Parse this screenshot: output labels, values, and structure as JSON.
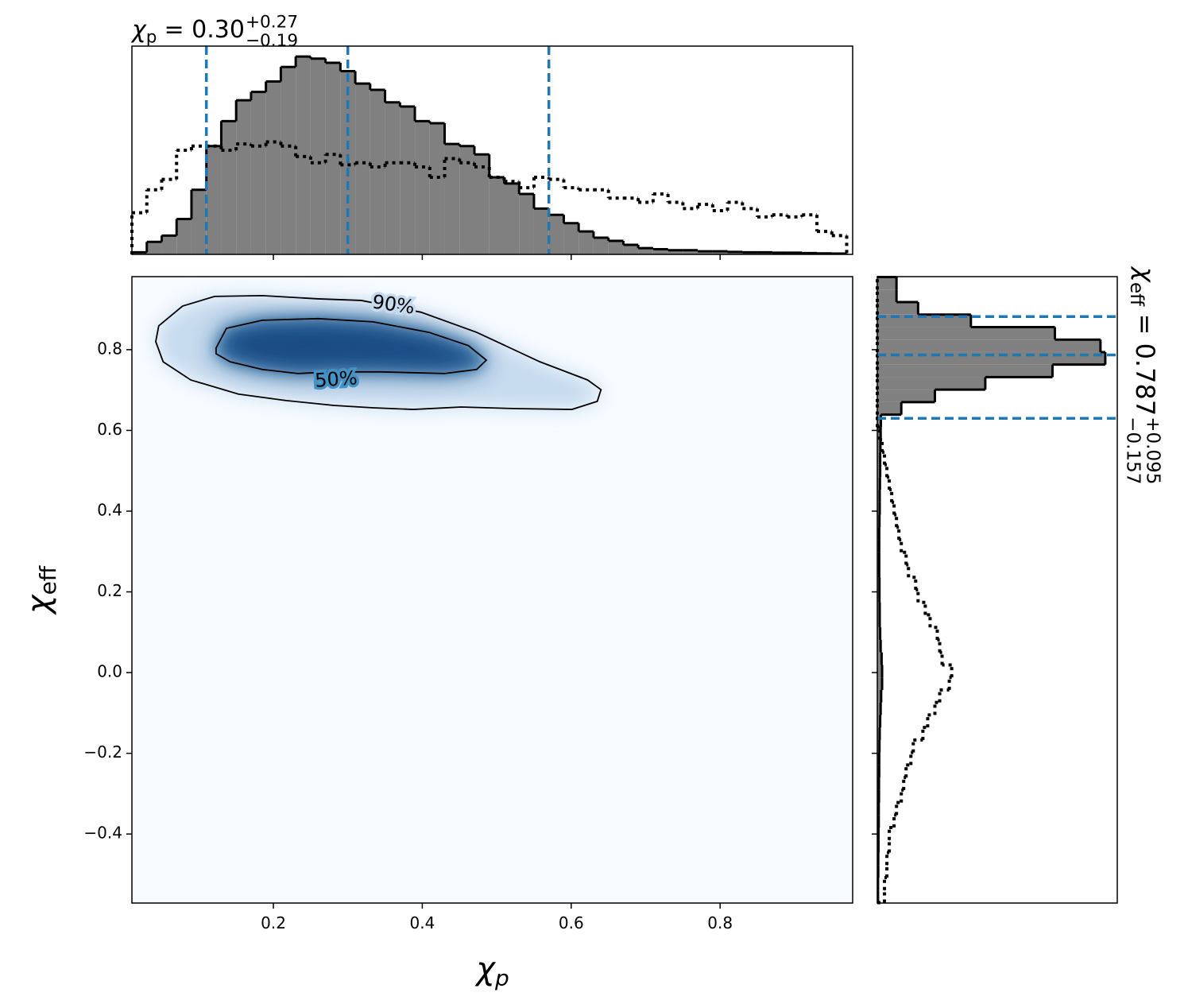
{
  "chart_data": [
    {
      "type": "histogram",
      "orientation": "vertical",
      "title": {
        "symbol": "χ",
        "symbol_sub": "p",
        "text": "= 0.30",
        "upper": "+0.27",
        "lower": "−0.19"
      },
      "bins": [
        0.01,
        0.03,
        0.05,
        0.07,
        0.09,
        0.11,
        0.13,
        0.15,
        0.17,
        0.19,
        0.21,
        0.23,
        0.25,
        0.27,
        0.29,
        0.31,
        0.33,
        0.35,
        0.37,
        0.39,
        0.41,
        0.43,
        0.45,
        0.47,
        0.49,
        0.51,
        0.53,
        0.55,
        0.57,
        0.59,
        0.61,
        0.63,
        0.65,
        0.67,
        0.69,
        0.71,
        0.73,
        0.75,
        0.77,
        0.79,
        0.81,
        0.83,
        0.85,
        0.87,
        0.89,
        0.91,
        0.93,
        0.95,
        0.97
      ],
      "series": [
        {
          "color": "#808080",
          "edgecolor": "#000000",
          "style": "filled",
          "values": [
            0.01,
            0.06,
            0.09,
            0.17,
            0.31,
            0.52,
            0.64,
            0.74,
            0.78,
            0.83,
            0.9,
            0.95,
            0.94,
            0.92,
            0.88,
            0.82,
            0.79,
            0.73,
            0.71,
            0.64,
            0.63,
            0.53,
            0.52,
            0.48,
            0.37,
            0.34,
            0.29,
            0.22,
            0.19,
            0.15,
            0.11,
            0.08,
            0.065,
            0.046,
            0.03,
            0.025,
            0.02,
            0.02,
            0.015,
            0.015,
            0.012,
            0.01,
            0.01,
            0.008,
            0.008,
            0.006,
            0.005,
            0.004
          ]
        },
        {
          "color": "#000000",
          "style": "dotted",
          "values": [
            0.2,
            0.31,
            0.36,
            0.5,
            0.52,
            0.52,
            0.5,
            0.53,
            0.52,
            0.54,
            0.52,
            0.47,
            0.44,
            0.48,
            0.43,
            0.44,
            0.42,
            0.44,
            0.44,
            0.42,
            0.37,
            0.46,
            0.44,
            0.42,
            0.37,
            0.35,
            0.32,
            0.37,
            0.36,
            0.32,
            0.31,
            0.31,
            0.27,
            0.27,
            0.25,
            0.29,
            0.25,
            0.22,
            0.24,
            0.21,
            0.25,
            0.22,
            0.18,
            0.19,
            0.18,
            0.19,
            0.11,
            0.09
          ]
        }
      ],
      "quantiles": [
        0.11,
        0.3,
        0.57
      ],
      "quantile_color": "#1f77b4",
      "xlim": [
        0.01,
        0.978
      ],
      "ylim": [
        0,
        1
      ],
      "xticks": [
        0.2,
        0.4,
        0.6,
        0.8
      ]
    },
    {
      "type": "contour",
      "xlabel": {
        "symbol": "χ",
        "sub": "p"
      },
      "ylabel": {
        "symbol": "χ",
        "sub": "eff"
      },
      "xlim": [
        0.01,
        0.978
      ],
      "ylim": [
        -0.571,
        0.981
      ],
      "xticks": [
        0.2,
        0.4,
        0.6,
        0.8
      ],
      "yticks": [
        {
          "value": -0.4,
          "label": "−0.4"
        },
        {
          "value": -0.2,
          "label": "−0.2"
        },
        {
          "value": 0,
          "label": "0.0"
        },
        0.2,
        0.4,
        0.6,
        0.8
      ],
      "cmap": [
        "#f7fbff",
        "#c6dbef",
        "#4292c6",
        "#08306b"
      ],
      "contours": [
        {
          "label": "90%",
          "color": "#000000",
          "x": [
            0.046,
            0.078,
            0.121,
            0.185,
            0.26,
            0.318,
            0.398,
            0.473,
            0.558,
            0.622,
            0.64,
            0.635,
            0.601,
            0.526,
            0.452,
            0.388,
            0.334,
            0.281,
            0.217,
            0.153,
            0.089,
            0.052,
            0.042
          ],
          "y": [
            0.859,
            0.908,
            0.932,
            0.934,
            0.926,
            0.922,
            0.893,
            0.843,
            0.77,
            0.725,
            0.701,
            0.672,
            0.652,
            0.654,
            0.658,
            0.652,
            0.656,
            0.662,
            0.674,
            0.69,
            0.725,
            0.77,
            0.82
          ]
        },
        {
          "label": "50%",
          "color": "#000000",
          "x": [
            0.123,
            0.137,
            0.185,
            0.26,
            0.334,
            0.409,
            0.462,
            0.486,
            0.473,
            0.43,
            0.345,
            0.281,
            0.233,
            0.185,
            0.142,
            0.123
          ],
          "y": [
            0.804,
            0.853,
            0.873,
            0.877,
            0.869,
            0.843,
            0.81,
            0.774,
            0.751,
            0.741,
            0.745,
            0.745,
            0.741,
            0.751,
            0.77,
            0.79
          ]
        }
      ]
    },
    {
      "type": "histogram",
      "orientation": "horizontal",
      "title": {
        "symbol": "χ",
        "symbol_sub": "eff",
        "text": "= 0.787",
        "upper": "+0.095",
        "lower": "−0.157"
      },
      "bins": [
        -0.57,
        -0.539,
        -0.508,
        -0.477,
        -0.446,
        -0.415,
        -0.384,
        -0.353,
        -0.322,
        -0.291,
        -0.26,
        -0.229,
        -0.198,
        -0.167,
        -0.136,
        -0.105,
        -0.074,
        -0.043,
        -0.012,
        0.019,
        0.05,
        0.081,
        0.112,
        0.143,
        0.174,
        0.205,
        0.236,
        0.267,
        0.298,
        0.329,
        0.36,
        0.391,
        0.422,
        0.453,
        0.484,
        0.515,
        0.546,
        0.577,
        0.608,
        0.639,
        0.67,
        0.701,
        0.732,
        0.763,
        0.794,
        0.825,
        0.856,
        0.887,
        0.918,
        0.949,
        0.98
      ],
      "series": [
        {
          "color": "#808080",
          "edgecolor": "#000000",
          "style": "filled",
          "values": [
            0.003,
            0.003,
            0.004,
            0.004,
            0.005,
            0.005,
            0.006,
            0.006,
            0.007,
            0.007,
            0.008,
            0.008,
            0.009,
            0.01,
            0.012,
            0.014,
            0.016,
            0.02,
            0.02,
            0.018,
            0.014,
            0.012,
            0.01,
            0.01,
            0.009,
            0.009,
            0.008,
            0.008,
            0.008,
            0.008,
            0.009,
            0.01,
            0.01,
            0.011,
            0.012,
            0.012,
            0.013,
            0.014,
            0.015,
            0.1,
            0.24,
            0.45,
            0.73,
            0.95,
            0.93,
            0.74,
            0.39,
            0.17,
            0.08,
            0.08
          ]
        },
        {
          "color": "#000000",
          "style": "dotted",
          "values": [
            0.03,
            0.03,
            0.04,
            0.04,
            0.05,
            0.05,
            0.07,
            0.08,
            0.1,
            0.11,
            0.12,
            0.14,
            0.15,
            0.19,
            0.21,
            0.24,
            0.26,
            0.3,
            0.31,
            0.27,
            0.26,
            0.25,
            0.22,
            0.2,
            0.17,
            0.16,
            0.13,
            0.12,
            0.1,
            0.09,
            0.08,
            0.07,
            0.06,
            0.05,
            0.04,
            0.03,
            0.02,
            0.01,
            0,
            0,
            0,
            0,
            0,
            0,
            0,
            0,
            0,
            0,
            0,
            0
          ]
        }
      ],
      "quantiles": [
        0.63,
        0.787,
        0.882
      ],
      "quantile_color": "#1f77b4",
      "xlim": [
        0,
        1
      ],
      "ylim": [
        -0.571,
        0.981
      ],
      "yticks": [
        -0.4,
        -0.2,
        0,
        0.2,
        0.4,
        0.6,
        0.8
      ]
    }
  ]
}
